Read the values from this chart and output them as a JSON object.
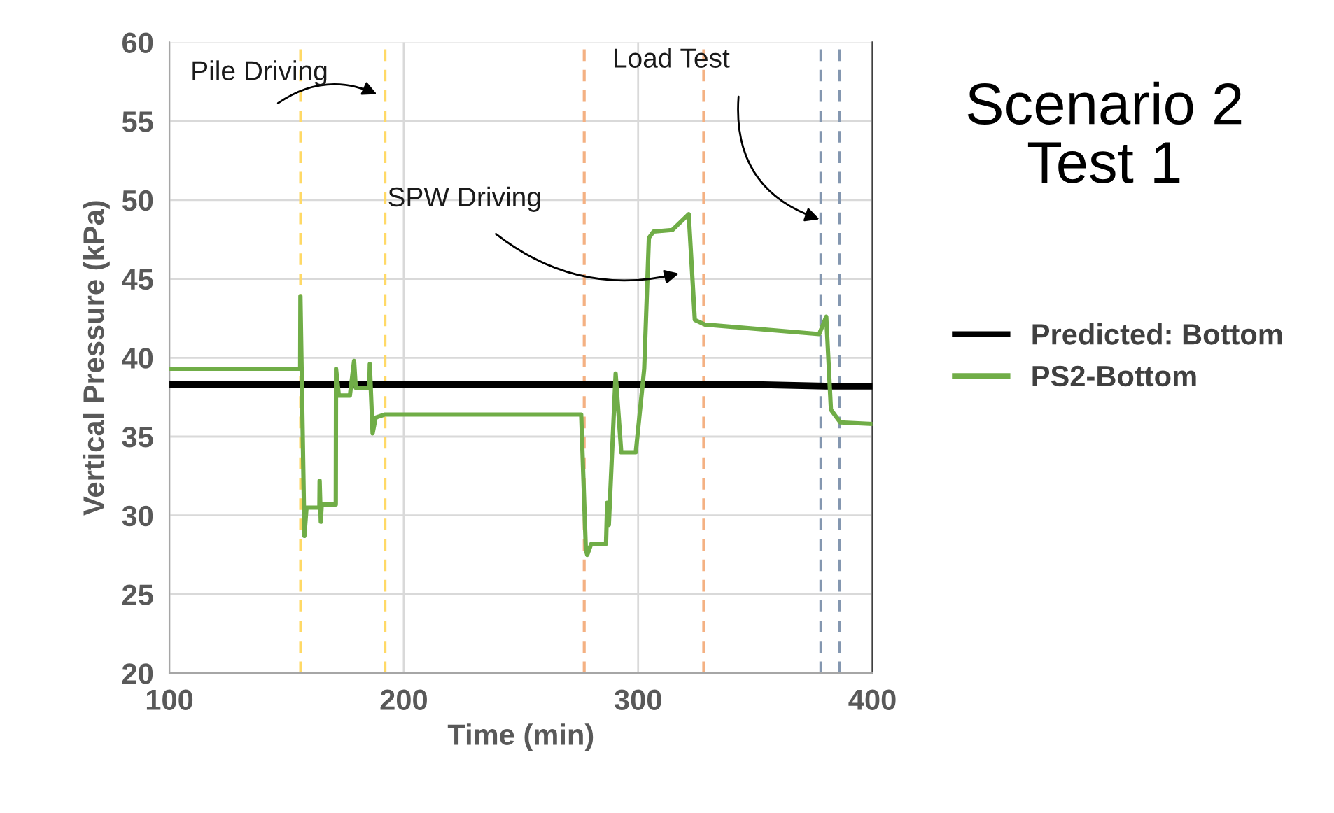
{
  "chart_data": {
    "type": "line",
    "title": "Scenario 2\nTest 1",
    "xlabel": "Time (min)",
    "ylabel": "Vertical Pressure (kPa)",
    "xlim": [
      100,
      400
    ],
    "xticks": [
      100,
      200,
      300,
      400
    ],
    "ylim": [
      20,
      60
    ],
    "yticks": [
      20,
      25,
      30,
      35,
      40,
      45,
      50,
      55,
      60
    ],
    "grid": true,
    "legend": "right",
    "line_style": "solid",
    "marker": "none",
    "series": [
      {
        "name": "Predicted: Bottom",
        "color": "#000000",
        "x": [
          100,
          150,
          200,
          250,
          300,
          350,
          380,
          400
        ],
        "values": [
          38.3,
          38.3,
          38.3,
          38.3,
          38.3,
          38.3,
          38.2,
          38.2
        ]
      },
      {
        "name": "PS2-Bottom",
        "color": "#70ad47",
        "x": [
          100,
          155.8,
          155.9,
          157.6,
          158.5,
          164,
          164.1,
          164.6,
          165,
          171,
          171.1,
          172.3,
          177,
          178.8,
          179.5,
          185.3,
          185.5,
          186.7,
          188,
          192,
          275.7,
          277.7,
          278.3,
          280,
          286.3,
          286.8,
          287.5,
          290.4,
          292.8,
          299,
          302.6,
          304.6,
          306.6,
          314.6,
          321.6,
          324.2,
          328.6,
          377.3,
          380.3,
          382.3,
          386.3,
          400
        ],
        "values": [
          39.3,
          39.3,
          43.9,
          28.7,
          30.5,
          30.5,
          32.2,
          29.6,
          30.7,
          30.7,
          39.3,
          37.6,
          37.6,
          39.8,
          38.1,
          38.1,
          39.6,
          35.2,
          36.2,
          36.4,
          36.4,
          27.8,
          27.5,
          28.2,
          28.2,
          30.8,
          29.4,
          39.0,
          34.0,
          34.0,
          39.3,
          47.6,
          48.0,
          48.1,
          49.1,
          42.4,
          42.1,
          41.5,
          42.6,
          36.7,
          35.9,
          35.8
        ]
      }
    ],
    "ref_lines": [
      {
        "axis": "x",
        "value": 156,
        "color": "#ffd966",
        "line_style": "dashed"
      },
      {
        "axis": "x",
        "value": 192,
        "color": "#ffd966",
        "line_style": "dashed"
      },
      {
        "axis": "x",
        "value": 277,
        "color": "#f4b183",
        "line_style": "dashed"
      },
      {
        "axis": "x",
        "value": 328,
        "color": "#f4b183",
        "line_style": "dashed"
      },
      {
        "axis": "x",
        "value": 378,
        "color": "#8497b0",
        "line_style": "dashed"
      },
      {
        "axis": "x",
        "value": 386,
        "color": "#8497b0",
        "line_style": "dashed"
      }
    ],
    "annotations": [
      "Pile Driving",
      "SPW Driving",
      {
        "text": "Load Test",
        "x": 379,
        "y": 48.7
      }
    ]
  }
}
